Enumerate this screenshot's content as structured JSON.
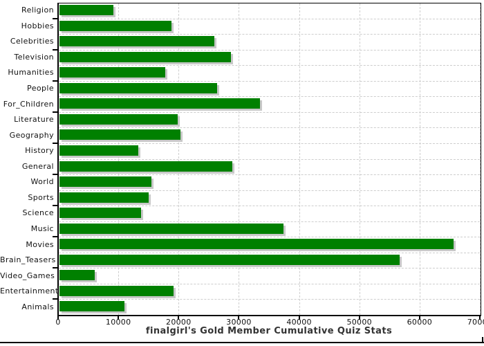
{
  "chart_data": {
    "type": "bar",
    "orientation": "horizontal",
    "title": "finalgirl's Gold Member Cumulative Quiz Stats",
    "categories": [
      "Religion",
      "Hobbies",
      "Celebrities",
      "Television",
      "Humanities",
      "People",
      "For_Children",
      "Literature",
      "Geography",
      "History",
      "General",
      "World",
      "Sports",
      "Science",
      "Music",
      "Movies",
      "Brain_Teasers",
      "Video_Games",
      "Entertainment",
      "Animals"
    ],
    "values": [
      9000,
      18600,
      25700,
      28500,
      17600,
      26200,
      33300,
      19600,
      20100,
      13100,
      28700,
      15300,
      14800,
      13500,
      37200,
      65400,
      56500,
      5800,
      18900,
      10800
    ],
    "xlabel": "",
    "ylabel": "",
    "xlim": [
      0,
      70000
    ],
    "x_ticks": [
      0,
      10000,
      20000,
      30000,
      40000,
      50000,
      60000,
      70000
    ],
    "x_tick_labels": [
      "0",
      "10000",
      "20000",
      "30000",
      "40000",
      "50000",
      "60000",
      "70000"
    ],
    "grid": "dashed",
    "legend": "none",
    "bar_color": "#008000",
    "shadow_color": "#c8c8c8",
    "grid_color": "#cdcdcd",
    "axis_color": "#000000",
    "title_color": "#333333"
  }
}
